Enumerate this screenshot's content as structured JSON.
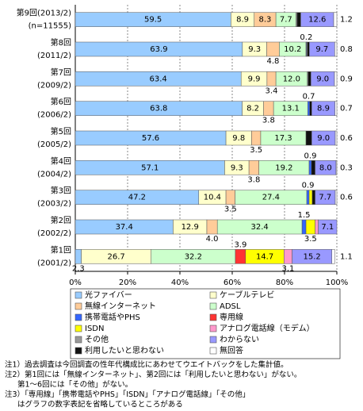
{
  "chart_data": {
    "type": "stacked-barh",
    "categories": [
      [
        "第9回(2013/2)",
        "(n=11555)"
      ],
      [
        "第8回",
        "(2011/2)"
      ],
      [
        "第7回",
        "(2009/2)"
      ],
      [
        "第6回",
        "(2006/2)"
      ],
      [
        "第5回",
        "(2005/2)"
      ],
      [
        "第4回",
        "(2004/2)"
      ],
      [
        "第3回",
        "(2003/2)"
      ],
      [
        "第2回",
        "(2002/2)"
      ],
      [
        "第1回",
        "(2001/2)"
      ]
    ],
    "xlim": [
      0,
      100
    ],
    "xticks": [
      {
        "value": 0,
        "label": "0%"
      },
      {
        "value": 20,
        "label": "20%"
      },
      {
        "value": 40,
        "label": "40%"
      },
      {
        "value": 60,
        "label": "60%"
      },
      {
        "value": 80,
        "label": "80%"
      },
      {
        "value": 100,
        "label": "100%"
      }
    ],
    "grid": true,
    "series": [
      {
        "name": "光ファイバー",
        "color": "#99ccff",
        "values": [
          59.5,
          63.9,
          63.4,
          63.8,
          57.6,
          57.1,
          47.2,
          37.4,
          2.3
        ],
        "value_labels": [
          "59.5",
          "63.9",
          "63.4",
          "63.8",
          "57.6",
          "57.1",
          "47.2",
          "37.4",
          "2.3"
        ]
      },
      {
        "name": "ケーブルテレビ",
        "color": "#ffffcc",
        "values": [
          8.9,
          9.3,
          9.9,
          8.2,
          9.8,
          9.3,
          10.4,
          12.9,
          26.7
        ],
        "value_labels": [
          "8.9",
          "9.3",
          "9.9",
          "8.2",
          "9.8",
          "9.3",
          "10.4",
          "12.9",
          "26.7"
        ]
      },
      {
        "name": "無線インターネット",
        "color": "#ffcc99",
        "values": [
          8.3,
          4.8,
          3.4,
          3.8,
          3.5,
          3.8,
          3.5,
          4.0,
          null
        ],
        "value_labels": [
          "8.3",
          "4.8",
          "3.4",
          "3.8",
          "3.5",
          "3.8",
          "3.5",
          "4.0",
          null
        ]
      },
      {
        "name": "ADSL",
        "color": "#ccffcc",
        "values": [
          7.7,
          10.2,
          12.0,
          13.1,
          17.3,
          19.2,
          27.4,
          32.4,
          32.2
        ],
        "value_labels": [
          "7.7",
          "10.2",
          "12.0",
          "13.1",
          "17.3",
          "19.2",
          "27.4",
          "32.4",
          "32.2"
        ]
      },
      {
        "name": "携帯電話やPHS",
        "color": "#3366ff",
        "values": [
          null,
          0.2,
          null,
          0.7,
          null,
          0.9,
          0.9,
          1.5,
          null
        ],
        "value_labels": [
          null,
          "0.2",
          null,
          "0.7",
          null,
          "0.9",
          "0.9",
          "1.5",
          null
        ]
      },
      {
        "name": "専用線",
        "color": "#ff3333",
        "values": [
          null,
          null,
          null,
          null,
          null,
          null,
          null,
          null,
          3.9
        ],
        "value_labels": [
          null,
          null,
          null,
          null,
          null,
          null,
          null,
          null,
          "3.9"
        ]
      },
      {
        "name": "ISDN",
        "color": "#ffff00",
        "values": [
          null,
          null,
          null,
          null,
          null,
          null,
          1.2,
          3.5,
          14.7
        ],
        "value_labels": [
          null,
          null,
          null,
          null,
          null,
          null,
          null,
          "3.5",
          "14.7"
        ]
      },
      {
        "name": "アナログ電話線（モデム）",
        "color": "#ff99cc",
        "values": [
          null,
          null,
          null,
          null,
          null,
          null,
          null,
          1.2,
          3.1
        ],
        "value_labels": [
          null,
          null,
          null,
          null,
          null,
          null,
          null,
          null,
          "3.1"
        ]
      },
      {
        "name": "その他",
        "color": "#999999",
        "values": [
          0.4,
          0.3,
          0.3,
          null,
          null,
          null,
          null,
          null,
          null
        ]
      },
      {
        "name": "利用したいと思わない",
        "color": "#111111",
        "values": [
          1.4,
          0.8,
          1.1,
          0.8,
          2.2,
          1.4,
          1.1,
          null,
          null
        ]
      },
      {
        "name": "わからない",
        "color": "#9999ff",
        "values": [
          12.6,
          9.7,
          9.0,
          8.9,
          9.0,
          8.0,
          7.7,
          7.1,
          15.2
        ],
        "value_labels": [
          "12.6",
          "9.7",
          "9.0",
          "8.9",
          "9.0",
          "8.0",
          "7.7",
          "7.1",
          "15.2"
        ]
      },
      {
        "name": "無回答",
        "color": "#ffffff",
        "values": [
          1.2,
          0.8,
          0.9,
          0.7,
          0.6,
          0.3,
          0.6,
          null,
          1.1
        ],
        "value_labels": [
          "1.2",
          "0.8",
          "0.9",
          "0.7",
          "0.6",
          "0.3",
          "0.6",
          null,
          "1.1"
        ]
      }
    ],
    "notes": [
      "注1）過去調査は今回調査の性年代構成比にあわせてウエイトバックをした集計値。",
      "注2）第1回には「無線インターネット」、第2回には「利用したいと思わない」がない。",
      "第1～6回には「その他」がない。",
      "注3）「専用線」「携帯電話やPHS」「ISDN」「アナログ電話線」「その他」",
      "はグラフの数字表記を省略しているところがある"
    ]
  }
}
